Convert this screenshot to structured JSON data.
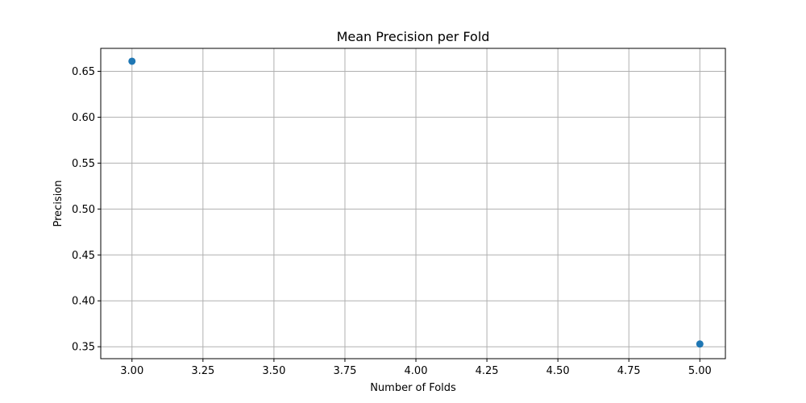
{
  "chart_data": {
    "type": "scatter",
    "title": "Mean Precision per Fold",
    "xlabel": "Number of Folds",
    "ylabel": "Precision",
    "xlim": [
      2.89,
      5.09
    ],
    "ylim": [
      0.337,
      0.675
    ],
    "xticks": [
      "3.00",
      "3.25",
      "3.50",
      "3.75",
      "4.00",
      "4.25",
      "4.50",
      "4.75",
      "5.00"
    ],
    "yticks": [
      "0.35",
      "0.40",
      "0.45",
      "0.50",
      "0.55",
      "0.60",
      "0.65"
    ],
    "grid": true,
    "series": [
      {
        "color": "#1f77b4",
        "x": [
          3,
          5
        ],
        "y": [
          0.661,
          0.353
        ]
      }
    ]
  }
}
